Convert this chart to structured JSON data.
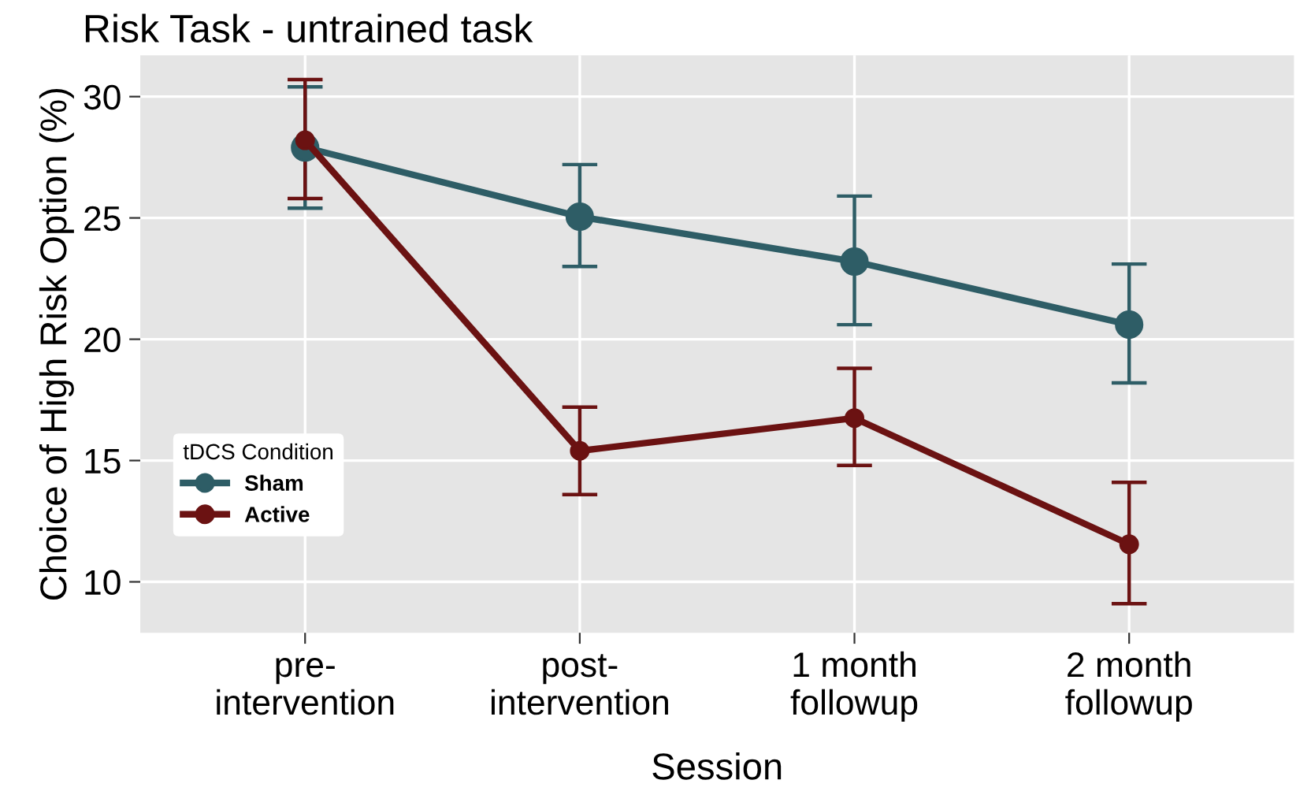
{
  "chart_data": {
    "type": "line",
    "title": "Risk Task - untrained task",
    "xlabel": "Session",
    "ylabel": "Choice of High Risk Option (%)",
    "legend_title": "tDCS Condition",
    "categories": [
      "pre-\nintervention",
      "post-\nintervention",
      "1 month\nfollowup",
      "2 month\nfollowup"
    ],
    "series": [
      {
        "name": "Sham",
        "color": "#2e5d66",
        "values": [
          27.9,
          25.05,
          23.2,
          20.6
        ],
        "errors": [
          [
            25.4,
            30.4
          ],
          [
            23.0,
            27.2
          ],
          [
            20.6,
            25.9
          ],
          [
            18.2,
            23.1
          ]
        ]
      },
      {
        "name": "Active",
        "color": "#6b1212",
        "values": [
          28.2,
          15.4,
          16.75,
          11.55
        ],
        "errors": [
          [
            25.8,
            30.7
          ],
          [
            13.6,
            17.2
          ],
          [
            14.8,
            18.8
          ],
          [
            9.1,
            14.1
          ]
        ]
      }
    ],
    "ylim": [
      7.9,
      31.7
    ],
    "yticks": [
      10,
      15,
      20,
      25,
      30
    ],
    "grid": true,
    "legend": "bottom left",
    "marker": "circle",
    "line_style": "solid"
  }
}
